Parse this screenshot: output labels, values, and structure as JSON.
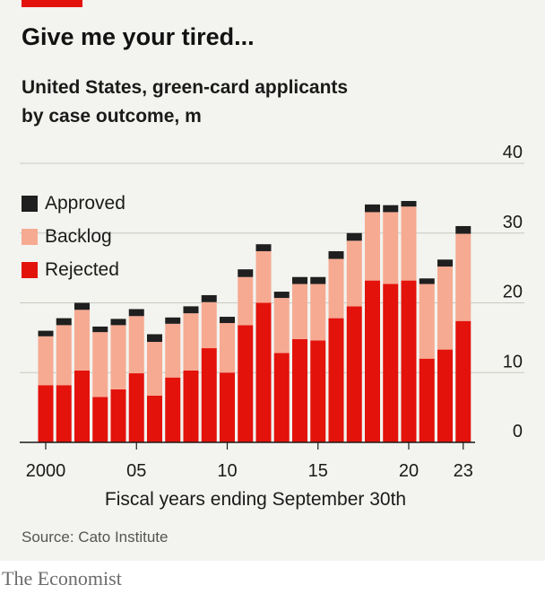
{
  "title": "Give me your tired...",
  "subtitle_line1": "United States, green-card applicants",
  "subtitle_line2": "by case outcome, m",
  "source": "Source: Cato Institute",
  "brand": "The Economist",
  "colors": {
    "approved": "#1f1f1f",
    "backlog": "#f6aa92",
    "rejected": "#e3120b",
    "accent": "#e3120b",
    "grid": "#c9c9c4",
    "background": "#f3f3ef"
  },
  "chart_data": {
    "type": "bar",
    "stacked": true,
    "x": [
      2000,
      2001,
      2002,
      2003,
      2004,
      2005,
      2006,
      2007,
      2008,
      2009,
      2010,
      2011,
      2012,
      2013,
      2014,
      2015,
      2016,
      2017,
      2018,
      2019,
      2020,
      2021,
      2022,
      2023
    ],
    "series": [
      {
        "name": "Rejected",
        "values": [
          8.2,
          8.2,
          10.3,
          6.5,
          7.6,
          9.9,
          6.7,
          9.3,
          10.3,
          13.5,
          10.0,
          16.8,
          20.0,
          12.8,
          14.8,
          14.6,
          17.8,
          19.5,
          23.2,
          22.7,
          23.2,
          12.0,
          13.3,
          17.4
        ]
      },
      {
        "name": "Backlog",
        "values": [
          7.0,
          8.6,
          8.7,
          9.3,
          9.2,
          8.2,
          7.7,
          7.7,
          8.2,
          6.6,
          7.1,
          6.9,
          7.4,
          7.9,
          7.9,
          8.1,
          8.5,
          9.4,
          9.8,
          10.3,
          10.6,
          10.7,
          11.9,
          12.5
        ]
      },
      {
        "name": "Approved",
        "values": [
          0.8,
          1.0,
          1.0,
          0.8,
          0.9,
          1.0,
          1.1,
          0.9,
          1.0,
          1.0,
          0.9,
          1.1,
          1.0,
          0.9,
          1.0,
          1.0,
          1.1,
          1.1,
          1.1,
          1.0,
          0.8,
          0.8,
          1.0,
          1.1
        ]
      }
    ],
    "ylim": [
      0,
      40
    ],
    "yticks": [
      0,
      10,
      20,
      30,
      40
    ],
    "xtick_labels": [
      {
        "year": 2000,
        "label": "2000"
      },
      {
        "year": 2005,
        "label": "05"
      },
      {
        "year": 2010,
        "label": "10"
      },
      {
        "year": 2015,
        "label": "15"
      },
      {
        "year": 2020,
        "label": "20"
      },
      {
        "year": 2023,
        "label": "23"
      }
    ],
    "xlabel": "Fiscal years ending September 30th",
    "ylabel": "",
    "legend_order": [
      "Approved",
      "Backlog",
      "Rejected"
    ],
    "legend_position": "top-left",
    "grid": true
  }
}
